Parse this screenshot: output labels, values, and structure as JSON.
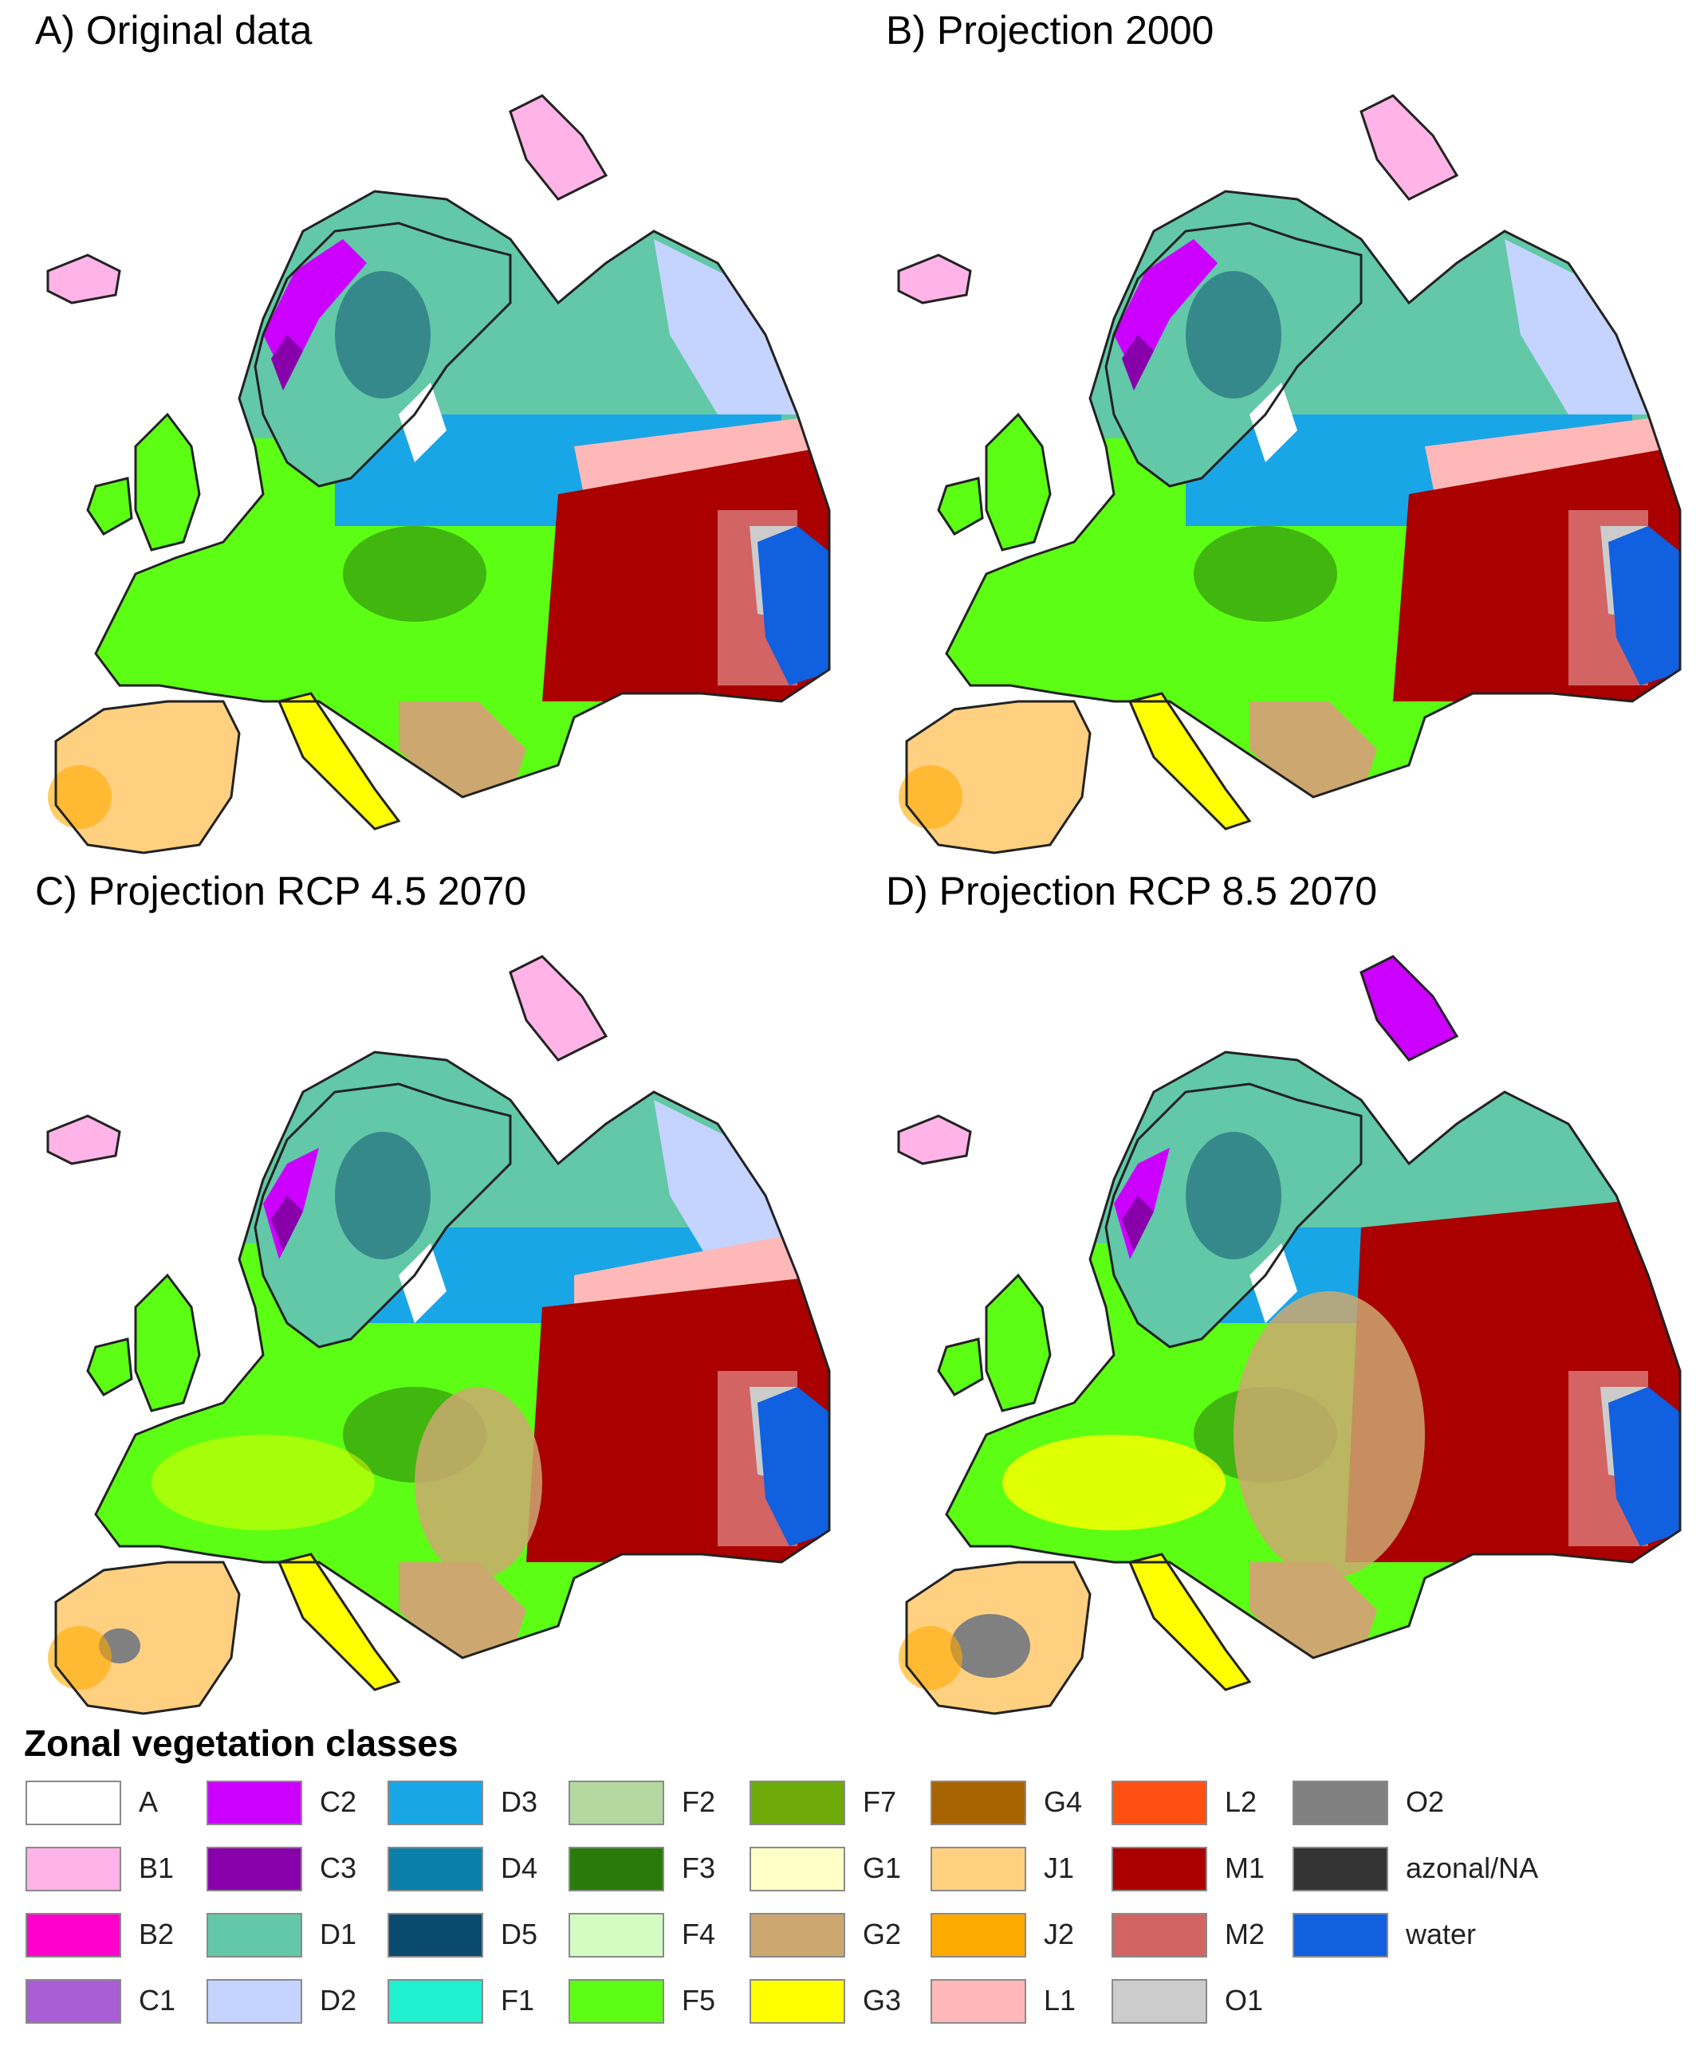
{
  "panels": [
    {
      "title": "A) Original data",
      "scenario": "original"
    },
    {
      "title": "B) Projection 2000",
      "scenario": "p2000"
    },
    {
      "title": "C) Projection RCP 4.5 2070",
      "scenario": "rcp45"
    },
    {
      "title": "D) Projection RCP 8.5 2070",
      "scenario": "rcp85"
    }
  ],
  "legend": {
    "title": "Zonal vegetation classes",
    "columns": [
      [
        {
          "code": "A",
          "color": "#ffffff"
        },
        {
          "code": "B1",
          "color": "#ffb3e6"
        },
        {
          "code": "B2",
          "color": "#ff00cc"
        },
        {
          "code": "C1",
          "color": "#a95ed6"
        }
      ],
      [
        {
          "code": "C2",
          "color": "#cc00ff"
        },
        {
          "code": "C3",
          "color": "#8800aa"
        },
        {
          "code": "D1",
          "color": "#62c8a8"
        },
        {
          "code": "D2",
          "color": "#c4d4ff"
        }
      ],
      [
        {
          "code": "D3",
          "color": "#19a6e6"
        },
        {
          "code": "D4",
          "color": "#0a7fa8"
        },
        {
          "code": "D5",
          "color": "#0a4a6e"
        },
        {
          "code": "F1",
          "color": "#1ff0d0"
        }
      ],
      [
        {
          "code": "F2",
          "color": "#b4d8a0"
        },
        {
          "code": "F3",
          "color": "#2a7a0a"
        },
        {
          "code": "F4",
          "color": "#d4fcc2"
        },
        {
          "code": "F5",
          "color": "#5cff14"
        }
      ],
      [
        {
          "code": "F7",
          "color": "#6eaa0a"
        },
        {
          "code": "G1",
          "color": "#ffffc8"
        },
        {
          "code": "G2",
          "color": "#cca870"
        },
        {
          "code": "G3",
          "color": "#ffff00"
        }
      ],
      [
        {
          "code": "G4",
          "color": "#a86400"
        },
        {
          "code": "J1",
          "color": "#ffd080"
        },
        {
          "code": "J2",
          "color": "#ffaa00"
        },
        {
          "code": "L1",
          "color": "#ffb8b8"
        }
      ],
      [
        {
          "code": "L2",
          "color": "#ff5014"
        },
        {
          "code": "M1",
          "color": "#aa0000"
        },
        {
          "code": "M2",
          "color": "#d26464"
        },
        {
          "code": "O1",
          "color": "#cccccc"
        }
      ],
      [
        {
          "code": "O2",
          "color": "#808080"
        },
        {
          "code": "azonal/NA",
          "color": "#333333"
        },
        {
          "code": "water",
          "color": "#1060e0"
        }
      ]
    ]
  },
  "map_colors": {
    "tundra": "#ffb3e6",
    "iceland": "#ffb3e6",
    "mountain_north": "#cc00ff",
    "mountain_dark": "#8800aa",
    "boreal": "#62c8a8",
    "boreal_east": "#c4d4ff",
    "hemiboreal": "#19a6e6",
    "hemiboreal_dark": "#0a4a6e",
    "temperate": "#5cff14",
    "temperate_dark": "#2a7a0a",
    "forest_steppe": "#ffb8b8",
    "steppe": "#aa0000",
    "semi_desert": "#d26464",
    "desert": "#cccccc",
    "desert_dark": "#808080",
    "mediterranean": "#ffd080",
    "mediterranean_dark": "#ffaa00",
    "submed": "#cca870",
    "dry": "#ffff00",
    "water": "#1060e0",
    "outline": "#222222"
  }
}
